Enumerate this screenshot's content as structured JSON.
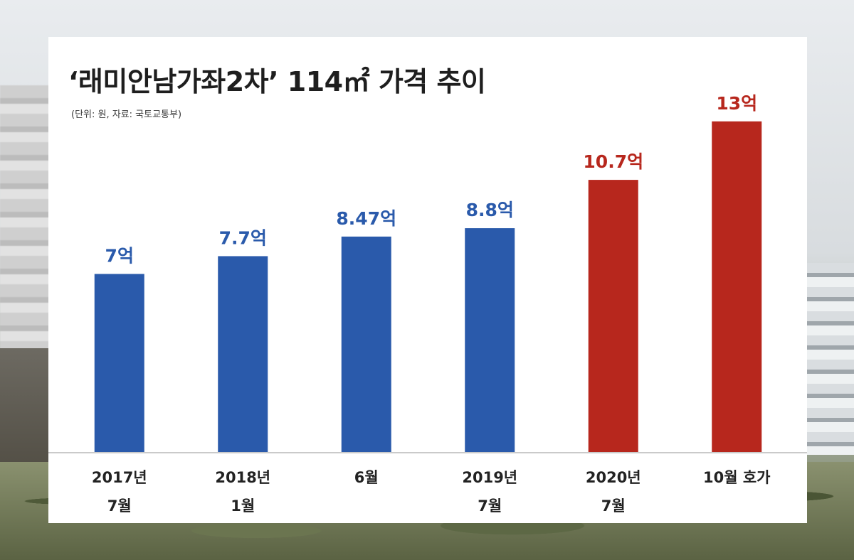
{
  "chart_data": {
    "type": "bar",
    "title": "‘래미안남가좌2차’ 114㎡ 가격 추이",
    "subtitle": "(단위: 원, 자료: 국토교통부)",
    "categories": [
      [
        "2017년",
        "7월"
      ],
      [
        "2018년",
        "1월"
      ],
      [
        "6월"
      ],
      [
        "2019년",
        "7월"
      ],
      [
        "2020년",
        "7월"
      ],
      [
        "10월 호가"
      ]
    ],
    "values": [
      7,
      7.7,
      8.47,
      8.8,
      10.7,
      13
    ],
    "value_labels": [
      "7억",
      "7.7억",
      "8.47억",
      "8.8억",
      "10.7억",
      "13억"
    ],
    "unit": "억",
    "colors": [
      "#2a5aab",
      "#2a5aab",
      "#2a5aab",
      "#2a5aab",
      "#b7271d",
      "#b7271d"
    ],
    "ylim": [
      0,
      14
    ],
    "grid": false,
    "legend": "none",
    "xlabel": "",
    "ylabel": ""
  }
}
